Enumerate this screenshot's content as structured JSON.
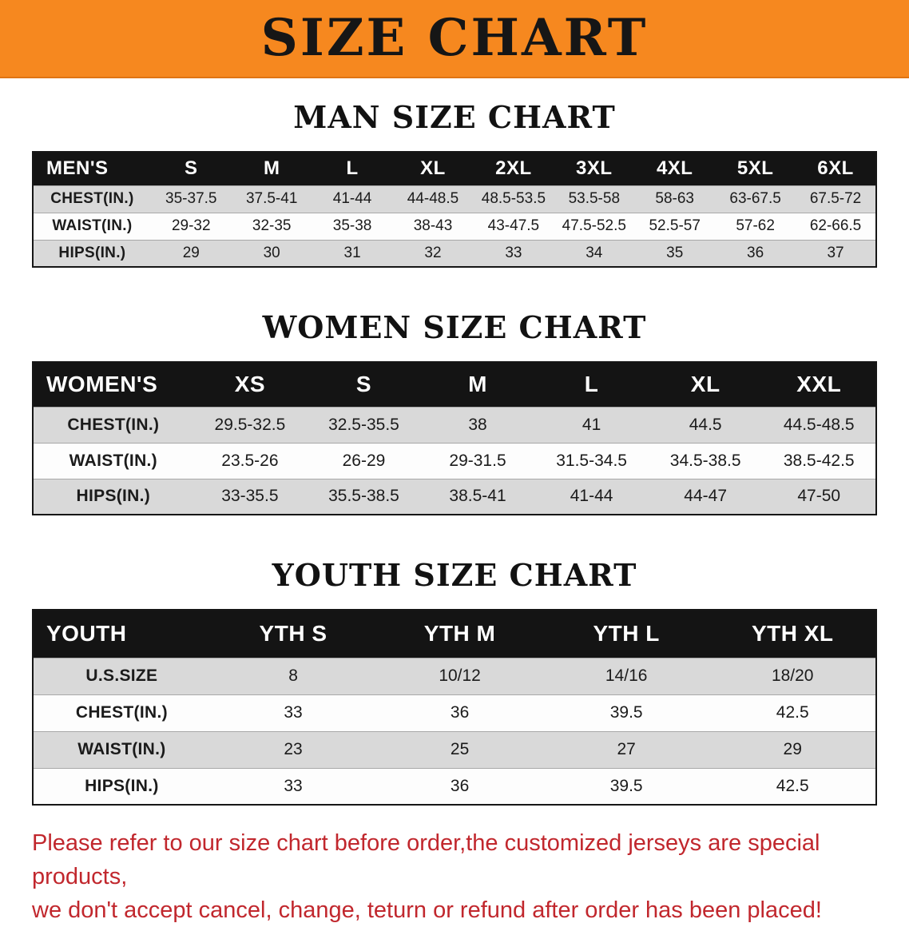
{
  "banner": {
    "title": "SIZE CHART"
  },
  "colors": {
    "banner_orange": "#f6881f",
    "table_header_black": "#141414",
    "row_stripe_gray": "#d9d9d9",
    "disclaimer_red": "#c1272d"
  },
  "sections": [
    {
      "heading": "MAN SIZE CHART",
      "table": {
        "header": [
          "MEN'S",
          "S",
          "M",
          "L",
          "XL",
          "2XL",
          "3XL",
          "4XL",
          "5XL",
          "6XL"
        ],
        "rows": [
          [
            "CHEST(IN.)",
            "35-37.5",
            "37.5-41",
            "41-44",
            "44-48.5",
            "48.5-53.5",
            "53.5-58",
            "58-63",
            "63-67.5",
            "67.5-72"
          ],
          [
            "WAIST(IN.)",
            "29-32",
            "32-35",
            "35-38",
            "38-43",
            "43-47.5",
            "47.5-52.5",
            "52.5-57",
            "57-62",
            "62-66.5"
          ],
          [
            "HIPS(IN.)",
            "29",
            "30",
            "31",
            "32",
            "33",
            "34",
            "35",
            "36",
            "37"
          ]
        ]
      }
    },
    {
      "heading": "WOMEN SIZE CHART",
      "table": {
        "header": [
          "WOMEN'S",
          "XS",
          "S",
          "M",
          "L",
          "XL",
          "XXL"
        ],
        "rows": [
          [
            "CHEST(IN.)",
            "29.5-32.5",
            "32.5-35.5",
            "38",
            "41",
            "44.5",
            "44.5-48.5"
          ],
          [
            "WAIST(IN.)",
            "23.5-26",
            "26-29",
            "29-31.5",
            "31.5-34.5",
            "34.5-38.5",
            "38.5-42.5"
          ],
          [
            "HIPS(IN.)",
            "33-35.5",
            "35.5-38.5",
            "38.5-41",
            "41-44",
            "44-47",
            "47-50"
          ]
        ]
      }
    },
    {
      "heading": "YOUTH SIZE CHART",
      "table": {
        "header": [
          "YOUTH",
          "YTH S",
          "YTH M",
          "YTH L",
          "YTH XL"
        ],
        "rows": [
          [
            "U.S.SIZE",
            "8",
            "10/12",
            "14/16",
            "18/20"
          ],
          [
            "CHEST(IN.)",
            "33",
            "36",
            "39.5",
            "42.5"
          ],
          [
            "WAIST(IN.)",
            "23",
            "25",
            "27",
            "29"
          ],
          [
            "HIPS(IN.)",
            "33",
            "36",
            "39.5",
            "42.5"
          ]
        ]
      }
    }
  ],
  "disclaimer": {
    "lines": [
      "Please refer to our size chart before order,the customized jerseys are special products,",
      "we don't accept cancel, change, teturn or refund after order has been placed!"
    ]
  }
}
